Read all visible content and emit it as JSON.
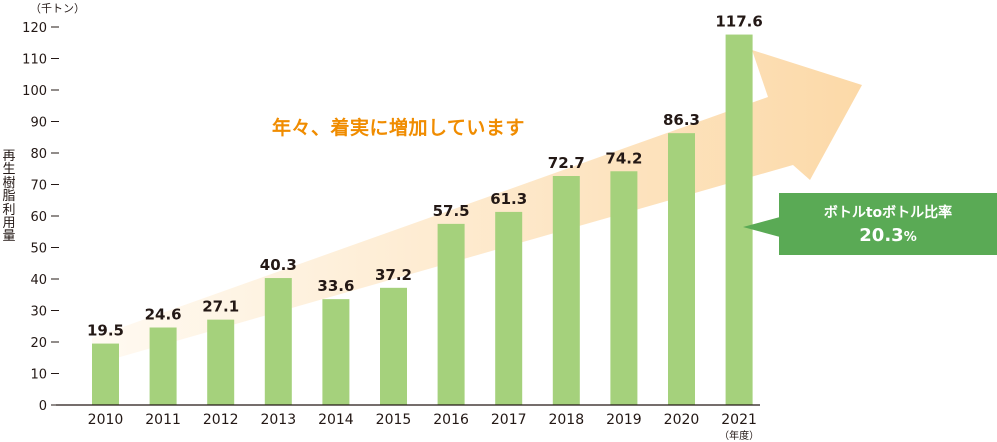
{
  "unit_label": "（千トン）",
  "ylabel": "再生樹脂利用量",
  "tagline": "年々、着実に増加しています",
  "callout": {
    "line1": "ボトルtoボトル比率",
    "value": "20.3",
    "unit": "%"
  },
  "colors": {
    "bar": "#a5d17c",
    "arrow_start": "#fffaf2",
    "arrow_end": "#fcd9a8",
    "tagline": "#f08c00",
    "callout": "#5aaa55",
    "axis": "#231815"
  },
  "chart_data": {
    "type": "bar",
    "categories": [
      "2010",
      "2011",
      "2012",
      "2013",
      "2014",
      "2015",
      "2016",
      "2017",
      "2018",
      "2019",
      "2020",
      "2021"
    ],
    "values": [
      19.5,
      24.6,
      27.1,
      40.3,
      33.6,
      37.2,
      57.5,
      61.3,
      72.7,
      74.2,
      86.3,
      117.6
    ],
    "data_labels": [
      "19.5",
      "24.6",
      "27.1",
      "40.3",
      "33.6",
      "37.2",
      "57.5",
      "61.3",
      "72.7",
      "74.2",
      "86.3",
      "117.6"
    ],
    "ylim": [
      0,
      120
    ],
    "yticks": [
      0,
      10,
      20,
      30,
      40,
      50,
      60,
      70,
      80,
      90,
      100,
      110,
      120
    ],
    "x_unit_label": "（年度）",
    "grid": false,
    "legend": "none"
  }
}
